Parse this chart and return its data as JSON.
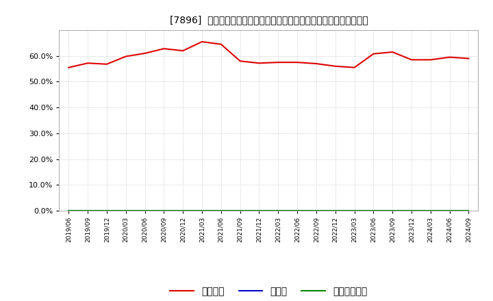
{
  "title": "[7896]  自己資本、のれん、繰延税金資産の総資産に対する比率の推移",
  "ylabel": "",
  "ylim": [
    0.0,
    70.0
  ],
  "yticks": [
    0.0,
    10.0,
    20.0,
    30.0,
    40.0,
    50.0,
    60.0
  ],
  "ytick_labels": [
    "0.0%",
    "10.0%",
    "20.0%",
    "30.0%",
    "40.0%",
    "50.0%",
    "60.0%"
  ],
  "background_color": "#ffffff",
  "plot_bg_color": "#ffffff",
  "grid_color": "#bbbbbb",
  "series_jiko": {
    "label": "自己資本",
    "color": "#dd0000",
    "data": [
      55.5,
      57.2,
      56.8,
      59.8,
      61.0,
      62.8,
      62.0,
      65.5,
      64.5,
      58.0,
      57.2,
      57.5,
      57.5,
      57.0,
      56.0,
      55.5,
      60.8,
      61.5,
      58.5,
      58.5,
      59.5,
      59.0
    ]
  },
  "series_noren": {
    "label": "のれん",
    "color": "#0000cc",
    "data": [
      0.0,
      0.0,
      0.0,
      0.0,
      0.0,
      0.0,
      0.0,
      0.0,
      0.0,
      0.0,
      0.0,
      0.0,
      0.0,
      0.0,
      0.0,
      0.0,
      0.0,
      0.0,
      0.0,
      0.0,
      0.0,
      0.0
    ]
  },
  "series_kuenni": {
    "label": "繰延税金資産",
    "color": "#008800",
    "data": [
      0.0,
      0.0,
      0.0,
      0.0,
      0.0,
      0.0,
      0.0,
      0.0,
      0.0,
      0.0,
      0.0,
      0.0,
      0.0,
      0.0,
      0.0,
      0.0,
      0.0,
      0.0,
      0.0,
      0.0,
      0.0,
      0.0
    ]
  },
  "xtick_labels": [
    "2019/06",
    "2019/09",
    "2019/12",
    "2020/03",
    "2020/06",
    "2020/09",
    "2020/12",
    "2021/03",
    "2021/06",
    "2021/09",
    "2021/12",
    "2022/03",
    "2022/06",
    "2022/09",
    "2022/12",
    "2023/03",
    "2023/06",
    "2023/09",
    "2023/12",
    "2024/03",
    "2024/06",
    "2024/09"
  ]
}
